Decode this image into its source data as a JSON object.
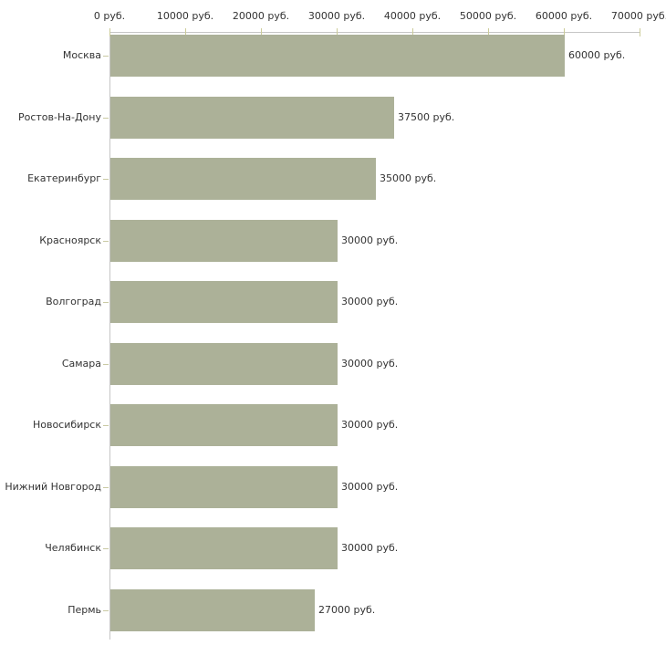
{
  "chart_data": {
    "type": "bar",
    "orientation": "horizontal",
    "title": "",
    "xlabel": "",
    "ylabel": "",
    "unit": "руб.",
    "xlim": [
      0,
      70000
    ],
    "grid": false,
    "legend": false,
    "categories": [
      "Москва",
      "Ростов-На-Дону",
      "Екатеринбург",
      "Красноярск",
      "Волгоград",
      "Самара",
      "Новосибирск",
      "Нижний Новгород",
      "Челябинск",
      "Пермь"
    ],
    "values": [
      60000,
      37500,
      35000,
      30000,
      30000,
      30000,
      30000,
      30000,
      30000,
      27000
    ],
    "value_labels": [
      "60000 руб.",
      "37500 руб.",
      "35000 руб.",
      "30000 руб.",
      "30000 руб.",
      "30000 руб.",
      "30000 руб.",
      "30000 руб.",
      "30000 руб.",
      "27000 руб."
    ],
    "x_ticks": [
      0,
      10000,
      20000,
      30000,
      40000,
      50000,
      60000,
      70000
    ],
    "x_tick_labels": [
      "0 руб.",
      "10000 руб.",
      "20000 руб.",
      "30000 руб.",
      "40000 руб.",
      "50000 руб.",
      "60000 руб.",
      "70000 руб."
    ]
  },
  "colors": {
    "bar": "#acb198",
    "axis_line": "#c6c6c6",
    "axis_tick": "#cccc99",
    "category_tick": "#c9c9a3",
    "text": "#333333",
    "background": "#ffffff"
  }
}
